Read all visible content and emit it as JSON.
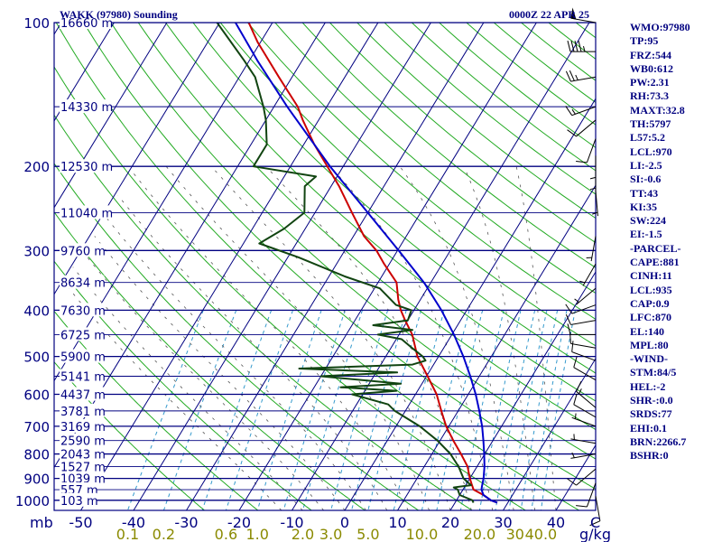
{
  "header": {
    "left_title": "WAKK (97980) Sounding",
    "right_title": "0000Z 22 APR 25"
  },
  "colors": {
    "frame": "#000080",
    "isobar": "#000080",
    "isotherm": "#000080",
    "dry_adiabat": "#22aa22",
    "moist_adiabat": "#555555",
    "mixing_ratio": "#3399cc",
    "temperature": "#cc0000",
    "dewpoint": "#114411",
    "parcel": "#0000cc",
    "wind_barb": "#000000"
  },
  "chart_data": {
    "type": "line",
    "diagram": "skew-T log-P",
    "y_axis_label": "mb",
    "y_ticks": [
      {
        "p": 100,
        "label": "100"
      },
      {
        "p": 200,
        "label": "200"
      },
      {
        "p": 300,
        "label": "300"
      },
      {
        "p": 400,
        "label": "400"
      },
      {
        "p": 500,
        "label": "500"
      },
      {
        "p": 600,
        "label": "600"
      },
      {
        "p": 700,
        "label": "700"
      },
      {
        "p": 800,
        "label": "800"
      },
      {
        "p": 900,
        "label": "900"
      },
      {
        "p": 1000,
        "label": "1000"
      }
    ],
    "x_ticks": [
      {
        "t": -50,
        "label": "-50"
      },
      {
        "t": -40,
        "label": "-40"
      },
      {
        "t": -30,
        "label": "-30"
      },
      {
        "t": -20,
        "label": "-20"
      },
      {
        "t": -10,
        "label": "-10"
      },
      {
        "t": 0,
        "label": "0"
      },
      {
        "t": 10,
        "label": "10"
      },
      {
        "t": 20,
        "label": "20"
      },
      {
        "t": 30,
        "label": "30"
      },
      {
        "t": 40,
        "label": "40"
      }
    ],
    "x_unit": "C",
    "mixing_ratio_unit": "g/kg",
    "mixing_ratio_ticks": [
      {
        "w": 0.1,
        "label": "0.1"
      },
      {
        "w": 0.2,
        "label": "0.2"
      },
      {
        "w": 0.6,
        "label": "0.6"
      },
      {
        "w": 1.0,
        "label": "1.0"
      },
      {
        "w": 2.0,
        "label": "2.0"
      },
      {
        "w": 3.0,
        "label": "3.0"
      },
      {
        "w": 5.0,
        "label": "5.0"
      },
      {
        "w": 10.0,
        "label": "10.0"
      },
      {
        "w": 20.0,
        "label": "20.0"
      },
      {
        "w": 30.0,
        "label": "30"
      },
      {
        "w": 40.0,
        "label": "40.0"
      }
    ],
    "height_labels": [
      {
        "p": 100,
        "label": "16660 m"
      },
      {
        "p": 150,
        "label": "14330 m"
      },
      {
        "p": 200,
        "label": "12530 m"
      },
      {
        "p": 250,
        "label": "11040 m"
      },
      {
        "p": 300,
        "label": "9760 m"
      },
      {
        "p": 350,
        "label": "8634 m"
      },
      {
        "p": 400,
        "label": "7630 m"
      },
      {
        "p": 450,
        "label": "6725 m"
      },
      {
        "p": 500,
        "label": "5900 m"
      },
      {
        "p": 550,
        "label": "5141 m"
      },
      {
        "p": 600,
        "label": "4437 m"
      },
      {
        "p": 650,
        "label": "3781 m"
      },
      {
        "p": 700,
        "label": "3169 m"
      },
      {
        "p": 750,
        "label": "2590 m"
      },
      {
        "p": 800,
        "label": "2043 m"
      },
      {
        "p": 850,
        "label": "1527 m"
      },
      {
        "p": 900,
        "label": "1039 m"
      },
      {
        "p": 950,
        "label": "557 m"
      },
      {
        "p": 1000,
        "label": "103 m"
      }
    ],
    "series": [
      {
        "key": "temperature",
        "points": [
          [
            1012,
            28.0
          ],
          [
            1000,
            26.5
          ],
          [
            975,
            24.5
          ],
          [
            950,
            22.0
          ],
          [
            925,
            21.0
          ],
          [
            900,
            20.0
          ],
          [
            850,
            18.2
          ],
          [
            800,
            15.5
          ],
          [
            750,
            12.5
          ],
          [
            700,
            9.5
          ],
          [
            650,
            6.8
          ],
          [
            600,
            4.0
          ],
          [
            550,
            0.2
          ],
          [
            500,
            -4.0
          ],
          [
            450,
            -7.5
          ],
          [
            420,
            -10.5
          ],
          [
            400,
            -12.5
          ],
          [
            380,
            -14.2
          ],
          [
            350,
            -16.5
          ],
          [
            320,
            -21.0
          ],
          [
            300,
            -24.0
          ],
          [
            280,
            -28.0
          ],
          [
            250,
            -33.0
          ],
          [
            220,
            -38.5
          ],
          [
            200,
            -43.0
          ],
          [
            180,
            -48.0
          ],
          [
            160,
            -53.0
          ],
          [
            150,
            -55.5
          ],
          [
            130,
            -62.5
          ],
          [
            110,
            -70.5
          ],
          [
            100,
            -74.5
          ]
        ]
      },
      {
        "key": "dewpoint",
        "points": [
          [
            1012,
            23.5
          ],
          [
            1000,
            23.0
          ],
          [
            975,
            20.0
          ],
          [
            950,
            19.0
          ],
          [
            940,
            18.0
          ],
          [
            930,
            21.0
          ],
          [
            900,
            18.8
          ],
          [
            850,
            16.5
          ],
          [
            800,
            13.5
          ],
          [
            750,
            9.5
          ],
          [
            700,
            4.5
          ],
          [
            650,
            -2.0
          ],
          [
            630,
            -4.0
          ],
          [
            600,
            -12.0
          ],
          [
            590,
            -4.0
          ],
          [
            580,
            -15.0
          ],
          [
            570,
            -4.0
          ],
          [
            550,
            -20.0
          ],
          [
            540,
            -6.0
          ],
          [
            530,
            -25.0
          ],
          [
            520,
            -4.0
          ],
          [
            510,
            -2.0
          ],
          [
            500,
            -3.0
          ],
          [
            480,
            -6.0
          ],
          [
            460,
            -9.0
          ],
          [
            450,
            -14.0
          ],
          [
            440,
            -8.0
          ],
          [
            430,
            -16.0
          ],
          [
            420,
            -10.0
          ],
          [
            400,
            -10.5
          ],
          [
            390,
            -14.0
          ],
          [
            360,
            -19.0
          ],
          [
            340,
            -27.0
          ],
          [
            310,
            -38.0
          ],
          [
            290,
            -47.0
          ],
          [
            270,
            -44.0
          ],
          [
            250,
            -42.0
          ],
          [
            220,
            -45.0
          ],
          [
            210,
            -44.0
          ],
          [
            200,
            -57.0
          ],
          [
            180,
            -57.0
          ],
          [
            160,
            -60.0
          ],
          [
            150,
            -62.0
          ],
          [
            130,
            -67.0
          ],
          [
            120,
            -71.0
          ],
          [
            100,
            -80.5
          ]
        ]
      },
      {
        "key": "parcel",
        "points": [
          [
            1012,
            28.0
          ],
          [
            1000,
            26.5
          ],
          [
            975,
            24.5
          ],
          [
            950,
            23.5
          ],
          [
            935,
            23.2
          ],
          [
            900,
            22.6
          ],
          [
            850,
            21.4
          ],
          [
            800,
            19.9
          ],
          [
            750,
            18.2
          ],
          [
            700,
            16.3
          ],
          [
            650,
            14.0
          ],
          [
            600,
            11.4
          ],
          [
            550,
            8.3
          ],
          [
            500,
            4.7
          ],
          [
            450,
            0.4
          ],
          [
            400,
            -4.8
          ],
          [
            350,
            -11.3
          ],
          [
            300,
            -19.8
          ],
          [
            250,
            -30.0
          ],
          [
            200,
            -42.5
          ],
          [
            150,
            -57.5
          ],
          [
            120,
            -68.5
          ],
          [
            100,
            -77.0
          ]
        ]
      }
    ],
    "wind_barbs": [
      {
        "p": 100,
        "dir": 280,
        "kt": 50
      },
      {
        "p": 115,
        "dir": 270,
        "kt": 45
      },
      {
        "p": 130,
        "dir": 260,
        "kt": 25
      },
      {
        "p": 150,
        "dir": 250,
        "kt": 15
      },
      {
        "p": 160,
        "dir": 230,
        "kt": 10
      },
      {
        "p": 175,
        "dir": 200,
        "kt": 10
      },
      {
        "p": 190,
        "dir": 180,
        "kt": 5
      },
      {
        "p": 200,
        "dir": 180,
        "kt": 5
      },
      {
        "p": 225,
        "dir": 175,
        "kt": 5
      },
      {
        "p": 280,
        "dir": 190,
        "kt": 5
      },
      {
        "p": 320,
        "dir": 210,
        "kt": 5
      },
      {
        "p": 360,
        "dir": 230,
        "kt": 5
      },
      {
        "p": 390,
        "dir": 250,
        "kt": 10
      },
      {
        "p": 420,
        "dir": 260,
        "kt": 10
      },
      {
        "p": 450,
        "dir": 270,
        "kt": 10
      },
      {
        "p": 480,
        "dir": 280,
        "kt": 10
      },
      {
        "p": 510,
        "dir": 290,
        "kt": 10
      },
      {
        "p": 560,
        "dir": 300,
        "kt": 10
      },
      {
        "p": 640,
        "dir": 310,
        "kt": 15
      },
      {
        "p": 670,
        "dir": 300,
        "kt": 10
      },
      {
        "p": 700,
        "dir": 290,
        "kt": 5
      },
      {
        "p": 760,
        "dir": 280,
        "kt": 5
      },
      {
        "p": 800,
        "dir": 260,
        "kt": 5
      },
      {
        "p": 860,
        "dir": 230,
        "kt": 10
      },
      {
        "p": 920,
        "dir": 200,
        "kt": 10
      },
      {
        "p": 980,
        "dir": 170,
        "kt": 10
      }
    ]
  },
  "indices": [
    "WMO:97980",
    "TP:95",
    "FRZ:544",
    "WB0:612",
    "PW:2.31",
    "RH:73.3",
    "MAXT:32.8",
    "TH:5797",
    "L57:5.2",
    "LCL:970",
    "LI:-2.5",
    "SI:-0.6",
    "TT:43",
    "KI:35",
    "SW:224",
    "EI:-1.5",
    "-PARCEL-",
    "CAPE:881",
    "CINH:11",
    "LCL:935",
    "CAP:0.9",
    "LFC:870",
    "EL:140",
    "MPL:80",
    "-WIND-",
    "STM:84/5",
    "HEL:-2",
    "SHR-:0.0",
    "SRDS:77",
    "EHI:0.1",
    "BRN:2266.7",
    "BSHR:0"
  ]
}
